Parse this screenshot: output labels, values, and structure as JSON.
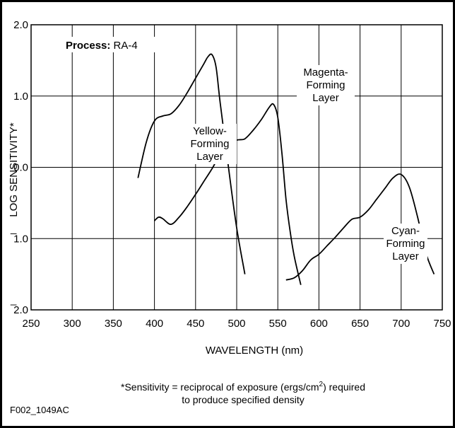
{
  "chart_data": {
    "type": "line",
    "xlabel": "WAVELENGTH (nm)",
    "ylabel": "LOG SENSITIVITY*",
    "xlim": [
      250,
      750
    ],
    "ylim": [
      -2.0,
      2.0
    ],
    "grid": true,
    "x_ticks": [
      "250",
      "300",
      "350",
      "400",
      "450",
      "500",
      "550",
      "600",
      "650",
      "700",
      "750"
    ],
    "y_ticks": [
      "2.0",
      "1.0",
      "0.0",
      "̅1.0",
      "̅2.0"
    ],
    "process_label": "Process:",
    "process_value": "RA-4",
    "series": [
      {
        "label_lines": [
          "Yellow-",
          "Forming",
          "Layer"
        ],
        "x": [
          380,
          390,
          400,
          410,
          420,
          430,
          440,
          450,
          460,
          465,
          470,
          475,
          480,
          490,
          500,
          510
        ],
        "y": [
          -0.15,
          0.35,
          0.65,
          0.72,
          0.75,
          0.87,
          1.05,
          1.25,
          1.45,
          1.55,
          1.58,
          1.4,
          0.9,
          0.0,
          -0.85,
          -1.5
        ]
      },
      {
        "label_lines": [
          "Magenta-",
          "Forming",
          "Layer"
        ],
        "x": [
          400,
          405,
          410,
          420,
          430,
          440,
          450,
          460,
          470,
          480,
          490,
          500,
          510,
          520,
          530,
          540,
          545,
          550,
          555,
          560,
          565,
          570,
          578
        ],
        "y": [
          -0.75,
          -0.7,
          -0.72,
          -0.8,
          -0.7,
          -0.55,
          -0.38,
          -0.2,
          -0.02,
          0.18,
          0.3,
          0.38,
          0.4,
          0.52,
          0.67,
          0.85,
          0.88,
          0.7,
          0.2,
          -0.45,
          -0.9,
          -1.25,
          -1.65
        ]
      },
      {
        "label_lines": [
          "Cyan-",
          "Forming",
          "Layer"
        ],
        "x": [
          560,
          570,
          580,
          590,
          600,
          610,
          620,
          630,
          640,
          650,
          660,
          670,
          680,
          690,
          700,
          710,
          720,
          730,
          740
        ],
        "y": [
          -1.58,
          -1.55,
          -1.45,
          -1.3,
          -1.22,
          -1.1,
          -0.98,
          -0.85,
          -0.73,
          -0.7,
          -0.6,
          -0.45,
          -0.3,
          -0.15,
          -0.1,
          -0.28,
          -0.7,
          -1.2,
          -1.5
        ]
      }
    ]
  },
  "footnote": {
    "line1_prefix": "*Sensitivity = reciprocal of exposure (ergs/cm",
    "superscript": "2",
    "line1_suffix": ") required",
    "line2": "to produce specified density"
  },
  "figure_code": "F002_1049AC"
}
